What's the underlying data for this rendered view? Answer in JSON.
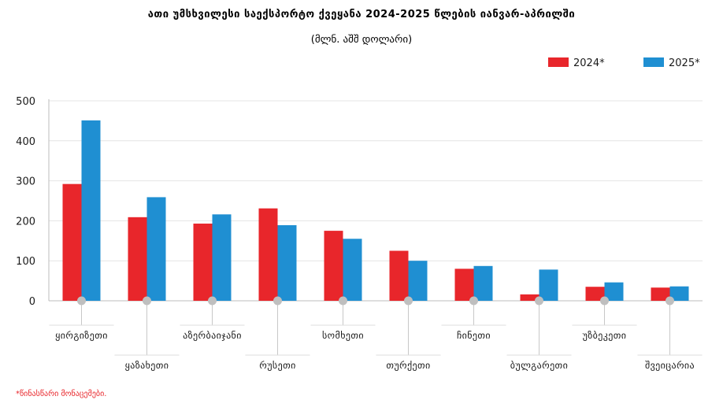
{
  "chart_data": {
    "type": "bar",
    "title": "ათი უმსხვილესი საექსპორტო ქვეყანა 2024-2025 წლების იანვარ-აპრილში",
    "subtitle": "(მლნ. აშშ დოლარი)",
    "categories": [
      "ყირგიზეთი",
      "ყაზახეთი",
      "აზერბაიჯანი",
      "რუსეთი",
      "სომხეთი",
      "თურქეთი",
      "ჩინეთი",
      "ბულგარეთი",
      "უზბეკეთი",
      "შვეიცარია"
    ],
    "series": [
      {
        "name": "2024*",
        "color": "#e8262b",
        "values": [
          292,
          209,
          193,
          231,
          175,
          125,
          80,
          16,
          35,
          33
        ]
      },
      {
        "name": "2025*",
        "color": "#1f8fd2",
        "values": [
          451,
          259,
          216,
          189,
          155,
          100,
          87,
          78,
          46,
          36
        ]
      }
    ],
    "ylim": [
      0,
      500
    ],
    "yticks": [
      0,
      100,
      200,
      300,
      400,
      500
    ],
    "grid": true,
    "legend_position": "top-right",
    "footnote": "*წინასწარი მონაცემები."
  }
}
